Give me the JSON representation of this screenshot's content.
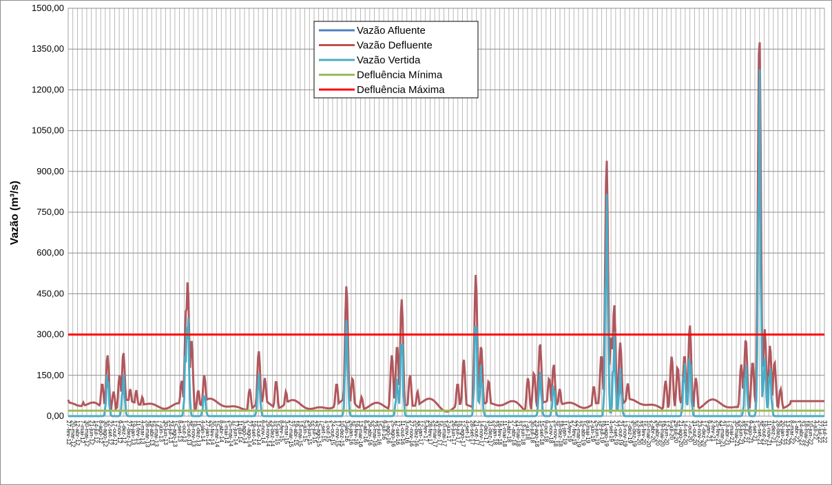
{
  "chart_data": {
    "type": "line",
    "title": "",
    "xlabel": "",
    "ylabel": "Vazão (m³/s)",
    "ylim": [
      0,
      1500
    ],
    "yticks": [
      "0,00",
      "150,00",
      "300,00",
      "450,00",
      "600,00",
      "750,00",
      "900,00",
      "1050,00",
      "1200,00",
      "1350,00",
      "1500,00"
    ],
    "grid": true,
    "legend_position": "top-center",
    "x_range": [
      "27-fev-12",
      "31-jul-22"
    ],
    "xticks": [
      "27-fev-12",
      "20-mar-12",
      "12-abr-12",
      "7-mai-12",
      "30-mai-12",
      "21-jun-12",
      "14-jul-12",
      "8-ago-12",
      "30-ago-12",
      "22-set-12",
      "17-out-12",
      "9-nov-12",
      "1-dez-12",
      "27-dez-12",
      "19-jan-13",
      "11-fev-13",
      "4-mar-13",
      "28-mar-13",
      "19-abr-13",
      "14-mai-13",
      "7-jun-13",
      "30-jun-13",
      "24-jul-13",
      "15-ago-13",
      "8-set-13",
      "1-out-13",
      "25-out-13",
      "18-nov-13",
      "11-dez-13",
      "4-jan-14",
      "27-jan-14",
      "20-fev-14",
      "15-mar-14",
      "8-abr-14",
      "1-mai-14",
      "25-mai-14",
      "17-jun-14",
      "11-jul-14",
      "3-ago-14",
      "27-ago-14",
      "19-set-14",
      "13-out-14",
      "6-nov-14",
      "29-nov-14",
      "23-dez-14",
      "15-jan-15",
      "8-fev-15",
      "3-mar-15",
      "27-mar-15",
      "19-abr-15",
      "13-mai-15",
      "5-jun-15",
      "29-jun-15",
      "22-jul-15",
      "15-ago-15",
      "7-set-15",
      "1-out-15",
      "24-out-15",
      "17-nov-15",
      "10-dez-15",
      "3-jan-16",
      "26-jan-16",
      "19-fev-16",
      "13-mar-16",
      "6-abr-16",
      "29-abr-16",
      "23-mai-16",
      "15-jun-16",
      "9-jul-16",
      "1-ago-16",
      "25-ago-16",
      "17-set-16",
      "11-out-16",
      "3-nov-16",
      "27-nov-16",
      "20-dez-16",
      "12-jan-17",
      "5-fev-17",
      "28-fev-17",
      "24-mar-17",
      "16-abr-17",
      "10-mai-17",
      "2-jun-17",
      "26-jun-17",
      "19-jul-17",
      "12-ago-17",
      "4-set-17",
      "28-set-17",
      "21-out-17",
      "14-nov-17",
      "7-dez-17",
      "31-dez-17",
      "23-jan-18",
      "16-fev-18",
      "11-mar-18",
      "4-abr-18",
      "27-abr-18",
      "21-mai-18",
      "13-jun-18",
      "7-jul-18",
      "30-jul-18",
      "23-ago-18",
      "15-set-18",
      "9-out-18",
      "1-nov-18",
      "25-nov-18",
      "18-dez-18",
      "11-jan-19",
      "3-fev-19",
      "27-fev-19",
      "22-mar-19",
      "15-abr-19",
      "8-mai-19",
      "2-jun-19",
      "25-jun-19",
      "19-jul-19",
      "11-ago-19",
      "4-set-19",
      "27-set-19",
      "21-out-19",
      "13-nov-19",
      "7-dez-19",
      "30-dez-19",
      "23-jan-20",
      "15-fev-20",
      "10-mar-20",
      "2-abr-20",
      "26-abr-20",
      "19-mai-20",
      "12-jun-20",
      "5-jul-20",
      "29-jul-20",
      "21-ago-20",
      "14-set-20",
      "7-out-20",
      "31-out-20",
      "23-nov-20",
      "17-dez-20",
      "9-jan-21",
      "2-fev-21",
      "25-fev-21",
      "21-mar-21",
      "13-abr-21",
      "7-mai-21",
      "30-mai-21",
      "23-jun-21",
      "16-jul-21",
      "9-ago-21",
      "1-set-21",
      "25-set-21",
      "18-out-21",
      "11-nov-21",
      "4-dez-21",
      "28-dez-21",
      "20-jan-22",
      "13-fev-22",
      "8-mar-22",
      "1-abr-22",
      "24-abr-22",
      "18-mai-22",
      "10-jun-22",
      "4-jul-22",
      "27-jul-22",
      "31-jul-22"
    ],
    "series": [
      {
        "name": "Vazão Afluente",
        "color": "#4f81bd"
      },
      {
        "name": "Vazão Defluente",
        "color": "#c0504d"
      },
      {
        "name": "Vazão Vertida",
        "color": "#4bacc6"
      },
      {
        "name": "Defluência Mínima",
        "color": "#9bbb59",
        "constant": 20
      },
      {
        "name": "Defluência Máxima",
        "color": "#ff0000",
        "constant": 300
      }
    ],
    "peaks_defluente": [
      {
        "t": 0.0,
        "v": 60
      },
      {
        "t": 0.02,
        "v": 50
      },
      {
        "t": 0.045,
        "v": 120
      },
      {
        "t": 0.052,
        "v": 225
      },
      {
        "t": 0.06,
        "v": 90
      },
      {
        "t": 0.068,
        "v": 150
      },
      {
        "t": 0.073,
        "v": 235
      },
      {
        "t": 0.082,
        "v": 100
      },
      {
        "t": 0.09,
        "v": 95
      },
      {
        "t": 0.098,
        "v": 70
      },
      {
        "t": 0.15,
        "v": 130
      },
      {
        "t": 0.156,
        "v": 395
      },
      {
        "t": 0.158,
        "v": 495
      },
      {
        "t": 0.163,
        "v": 280
      },
      {
        "t": 0.172,
        "v": 95
      },
      {
        "t": 0.18,
        "v": 150
      },
      {
        "t": 0.24,
        "v": 100
      },
      {
        "t": 0.252,
        "v": 240
      },
      {
        "t": 0.26,
        "v": 140
      },
      {
        "t": 0.275,
        "v": 130
      },
      {
        "t": 0.288,
        "v": 90
      },
      {
        "t": 0.355,
        "v": 120
      },
      {
        "t": 0.368,
        "v": 480
      },
      {
        "t": 0.376,
        "v": 140
      },
      {
        "t": 0.388,
        "v": 70
      },
      {
        "t": 0.428,
        "v": 225
      },
      {
        "t": 0.435,
        "v": 260
      },
      {
        "t": 0.441,
        "v": 430
      },
      {
        "t": 0.452,
        "v": 150
      },
      {
        "t": 0.462,
        "v": 90
      },
      {
        "t": 0.515,
        "v": 120
      },
      {
        "t": 0.523,
        "v": 210
      },
      {
        "t": 0.539,
        "v": 520
      },
      {
        "t": 0.546,
        "v": 260
      },
      {
        "t": 0.556,
        "v": 130
      },
      {
        "t": 0.608,
        "v": 140
      },
      {
        "t": 0.616,
        "v": 160
      },
      {
        "t": 0.624,
        "v": 270
      },
      {
        "t": 0.636,
        "v": 140
      },
      {
        "t": 0.642,
        "v": 190
      },
      {
        "t": 0.65,
        "v": 100
      },
      {
        "t": 0.695,
        "v": 110
      },
      {
        "t": 0.705,
        "v": 225
      },
      {
        "t": 0.712,
        "v": 945
      },
      {
        "t": 0.718,
        "v": 290
      },
      {
        "t": 0.722,
        "v": 410
      },
      {
        "t": 0.73,
        "v": 270
      },
      {
        "t": 0.74,
        "v": 120
      },
      {
        "t": 0.79,
        "v": 130
      },
      {
        "t": 0.798,
        "v": 220
      },
      {
        "t": 0.806,
        "v": 180
      },
      {
        "t": 0.815,
        "v": 225
      },
      {
        "t": 0.822,
        "v": 335
      },
      {
        "t": 0.83,
        "v": 140
      },
      {
        "t": 0.89,
        "v": 190
      },
      {
        "t": 0.896,
        "v": 285
      },
      {
        "t": 0.905,
        "v": 200
      },
      {
        "t": 0.914,
        "v": 1410
      },
      {
        "t": 0.921,
        "v": 320
      },
      {
        "t": 0.928,
        "v": 260
      },
      {
        "t": 0.934,
        "v": 200
      },
      {
        "t": 0.942,
        "v": 100
      },
      {
        "t": 0.96,
        "v": 55
      },
      {
        "t": 1.0,
        "v": 55
      }
    ],
    "peaks_vertida": [
      {
        "t": 0.052,
        "v": 175
      },
      {
        "t": 0.073,
        "v": 160
      },
      {
        "t": 0.158,
        "v": 450
      },
      {
        "t": 0.156,
        "v": 340
      },
      {
        "t": 0.18,
        "v": 95
      },
      {
        "t": 0.252,
        "v": 180
      },
      {
        "t": 0.368,
        "v": 415
      },
      {
        "t": 0.441,
        "v": 350
      },
      {
        "t": 0.435,
        "v": 150
      },
      {
        "t": 0.539,
        "v": 440
      },
      {
        "t": 0.546,
        "v": 200
      },
      {
        "t": 0.624,
        "v": 185
      },
      {
        "t": 0.642,
        "v": 130
      },
      {
        "t": 0.712,
        "v": 895
      },
      {
        "t": 0.722,
        "v": 320
      },
      {
        "t": 0.73,
        "v": 180
      },
      {
        "t": 0.815,
        "v": 220
      },
      {
        "t": 0.822,
        "v": 260
      },
      {
        "t": 0.896,
        "v": 220
      },
      {
        "t": 0.914,
        "v": 1355
      },
      {
        "t": 0.921,
        "v": 250
      },
      {
        "t": 0.928,
        "v": 200
      }
    ]
  }
}
